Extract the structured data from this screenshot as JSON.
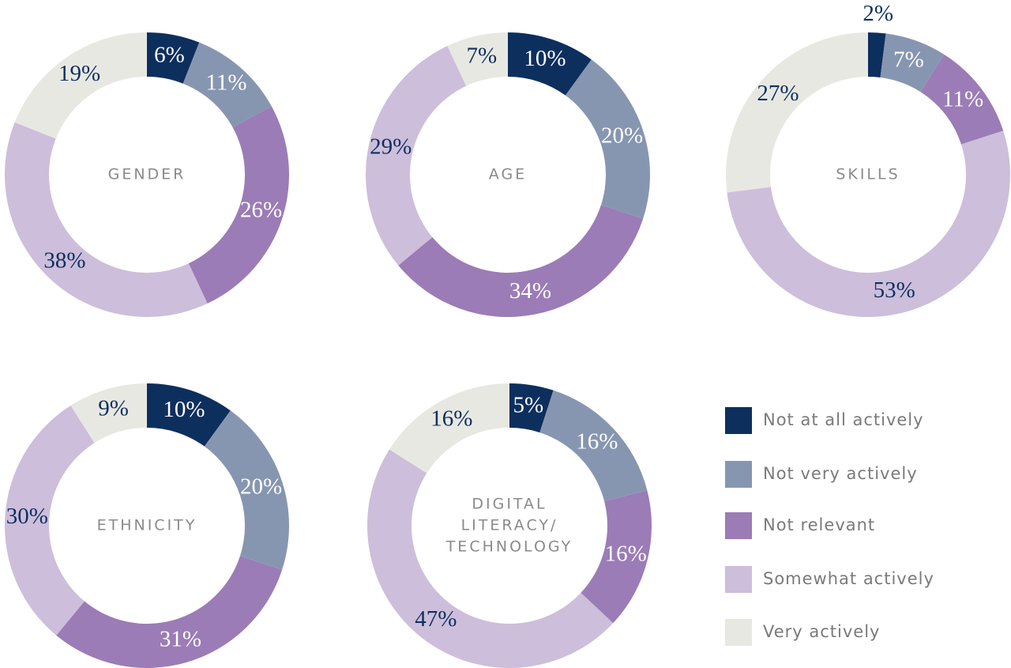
{
  "chart_data": [
    {
      "type": "donut",
      "title": [
        "GENDER"
      ],
      "values": [
        6,
        11,
        26,
        38,
        19
      ],
      "value_labels": [
        "6%",
        "11%",
        "26%",
        "38%",
        "19%"
      ]
    },
    {
      "type": "donut",
      "title": [
        "AGE"
      ],
      "values": [
        10,
        20,
        34,
        29,
        7
      ],
      "value_labels": [
        "10%",
        "20%",
        "34%",
        "29%",
        "7%"
      ]
    },
    {
      "type": "donut",
      "title": [
        "SKILLS"
      ],
      "values": [
        2,
        7,
        11,
        53,
        27
      ],
      "value_labels": [
        "2%",
        "7%",
        "11%",
        "53%",
        "27%"
      ]
    },
    {
      "type": "donut",
      "title": [
        "ETHNICITY"
      ],
      "values": [
        10,
        20,
        31,
        30,
        9
      ],
      "value_labels": [
        "10%",
        "20%",
        "31%",
        "30%",
        "9%"
      ]
    },
    {
      "type": "donut",
      "title": [
        "DIGITAL",
        "LITERACY/",
        "TECHNOLOGY"
      ],
      "values": [
        5,
        16,
        16,
        47,
        16
      ],
      "value_labels": [
        "5%",
        "16%",
        "16%",
        "47%",
        "16%"
      ]
    }
  ],
  "legend": {
    "labels": [
      "Not at all actively",
      "Not very actively",
      "Not relevant",
      "Somewhat actively",
      "Very actively"
    ],
    "colors": [
      "#0d2f5e",
      "#8796b0",
      "#9b7cb6",
      "#cdbedb",
      "#e8e8e2"
    ]
  }
}
